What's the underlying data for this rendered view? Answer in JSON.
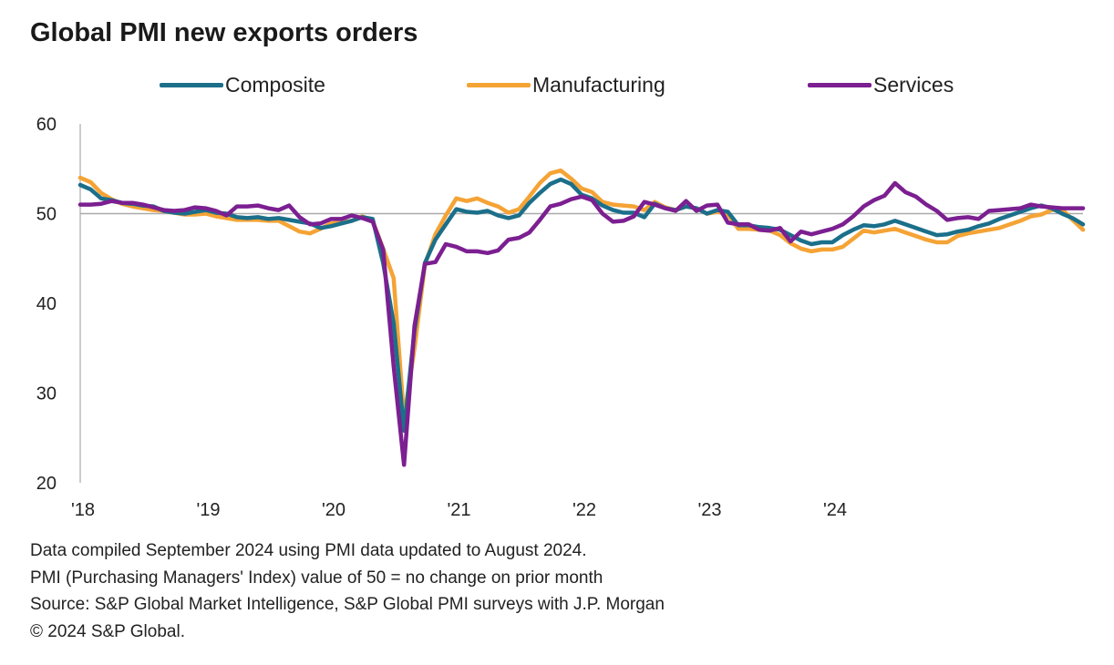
{
  "title": "Global PMI new exports orders",
  "notes": [
    "Data compiled September 2024 using PMI data updated to August 2024.",
    "PMI (Purchasing Managers' Index) value of 50 = no change on prior month",
    "Source: S&P Global Market Intelligence,  S&P Global PMI surveys with J.P. Morgan",
    "© 2024 S&P Global."
  ],
  "colors": {
    "composite": "#1b6f8a",
    "manufacturing": "#f5a335",
    "services": "#7b1f91",
    "reference_line": "#aaaaaa",
    "axis": "#bbbbbb"
  },
  "chart_data": {
    "type": "line",
    "title": "Global PMI new exports orders",
    "xlabel": "",
    "ylabel": "",
    "ylim": [
      20,
      60
    ],
    "yticks": [
      "20",
      "30",
      "40",
      "50",
      "60"
    ],
    "xticks": [
      "'18",
      "'19",
      "'20",
      "'21",
      "'22",
      "'23",
      "'24"
    ],
    "x_start": "2018-01",
    "x_end": "2024-08",
    "reference_line": 50,
    "legend_position": "top",
    "series": [
      {
        "name": "Composite",
        "color": "#1b6f8a",
        "values": [
          53.2,
          52.7,
          51.7,
          51.5,
          51.2,
          51.1,
          50.9,
          50.8,
          50.3,
          50.1,
          50.0,
          50.2,
          50.4,
          50.1,
          50.0,
          49.6,
          49.5,
          49.6,
          49.4,
          49.5,
          49.3,
          49.1,
          48.9,
          48.4,
          48.6,
          48.9,
          49.2,
          49.6,
          49.4,
          44.5,
          37.8,
          25.8,
          37.0,
          44.5,
          47.1,
          48.8,
          50.5,
          50.2,
          50.1,
          50.3,
          49.8,
          49.5,
          49.8,
          51.2,
          52.3,
          53.3,
          53.8,
          53.3,
          52.1,
          51.7,
          50.9,
          50.4,
          50.1,
          50.1,
          49.6,
          51.1,
          50.6,
          50.4,
          50.8,
          50.6,
          50.0,
          50.4,
          50.2,
          48.7,
          48.7,
          48.5,
          48.4,
          48.2,
          47.6,
          47.0,
          46.6,
          46.8,
          46.8,
          47.6,
          48.2,
          48.7,
          48.6,
          48.8,
          49.2,
          48.8,
          48.4,
          48.0,
          47.6,
          47.7,
          48.0,
          48.2,
          48.6,
          48.9,
          49.4,
          49.8,
          50.2,
          50.6,
          50.9,
          50.6,
          50.0,
          49.5,
          48.8
        ]
      },
      {
        "name": "Manufacturing",
        "color": "#f5a335",
        "values": [
          54.0,
          53.5,
          52.3,
          51.6,
          51.1,
          50.8,
          50.6,
          50.4,
          50.3,
          50.1,
          49.9,
          49.9,
          50.0,
          49.7,
          49.5,
          49.3,
          49.3,
          49.3,
          49.2,
          49.2,
          48.6,
          48.0,
          47.8,
          48.3,
          48.9,
          49.0,
          49.2,
          49.7,
          49.2,
          46.1,
          42.8,
          27.2,
          35.0,
          44.3,
          47.7,
          49.8,
          51.7,
          51.4,
          51.7,
          51.2,
          50.8,
          50.1,
          50.5,
          51.9,
          53.4,
          54.5,
          54.8,
          53.9,
          52.8,
          52.4,
          51.3,
          51.0,
          50.9,
          50.8,
          50.4,
          51.3,
          50.7,
          50.4,
          50.8,
          50.6,
          50.0,
          50.2,
          49.9,
          48.3,
          48.3,
          48.2,
          48.1,
          47.6,
          46.7,
          46.1,
          45.8,
          46.0,
          46.0,
          46.3,
          47.2,
          48.1,
          47.9,
          48.1,
          48.3,
          47.9,
          47.5,
          47.1,
          46.8,
          46.8,
          47.5,
          47.8,
          48.0,
          48.2,
          48.4,
          48.8,
          49.2,
          49.7,
          49.9,
          50.4,
          50.5,
          49.3,
          48.2
        ]
      },
      {
        "name": "Services",
        "color": "#7b1f91",
        "values": [
          51.0,
          51.0,
          51.1,
          51.4,
          51.2,
          51.2,
          51.0,
          50.7,
          50.4,
          50.3,
          50.4,
          50.7,
          50.6,
          50.3,
          49.8,
          50.8,
          50.8,
          50.9,
          50.6,
          50.4,
          50.9,
          49.6,
          48.8,
          48.9,
          49.4,
          49.4,
          49.8,
          49.5,
          49.1,
          46.0,
          33.0,
          22.0,
          37.5,
          44.4,
          44.6,
          46.6,
          46.3,
          45.8,
          45.8,
          45.6,
          45.9,
          47.1,
          47.3,
          47.9,
          49.3,
          50.8,
          51.1,
          51.6,
          51.9,
          51.5,
          50.0,
          49.1,
          49.2,
          49.7,
          51.3,
          51.0,
          50.6,
          50.3,
          51.4,
          50.3,
          50.9,
          51.0,
          49.0,
          48.8,
          48.8,
          48.2,
          48.1,
          48.4,
          46.9,
          48.0,
          47.7,
          48.0,
          48.3,
          48.8,
          49.7,
          50.8,
          51.5,
          52.0,
          53.4,
          52.4,
          51.9,
          51.0,
          50.3,
          49.3,
          49.5,
          49.6,
          49.4,
          50.3,
          50.4,
          50.5,
          50.6,
          51.0,
          50.8,
          50.7,
          50.6,
          50.6,
          50.6
        ]
      }
    ]
  }
}
